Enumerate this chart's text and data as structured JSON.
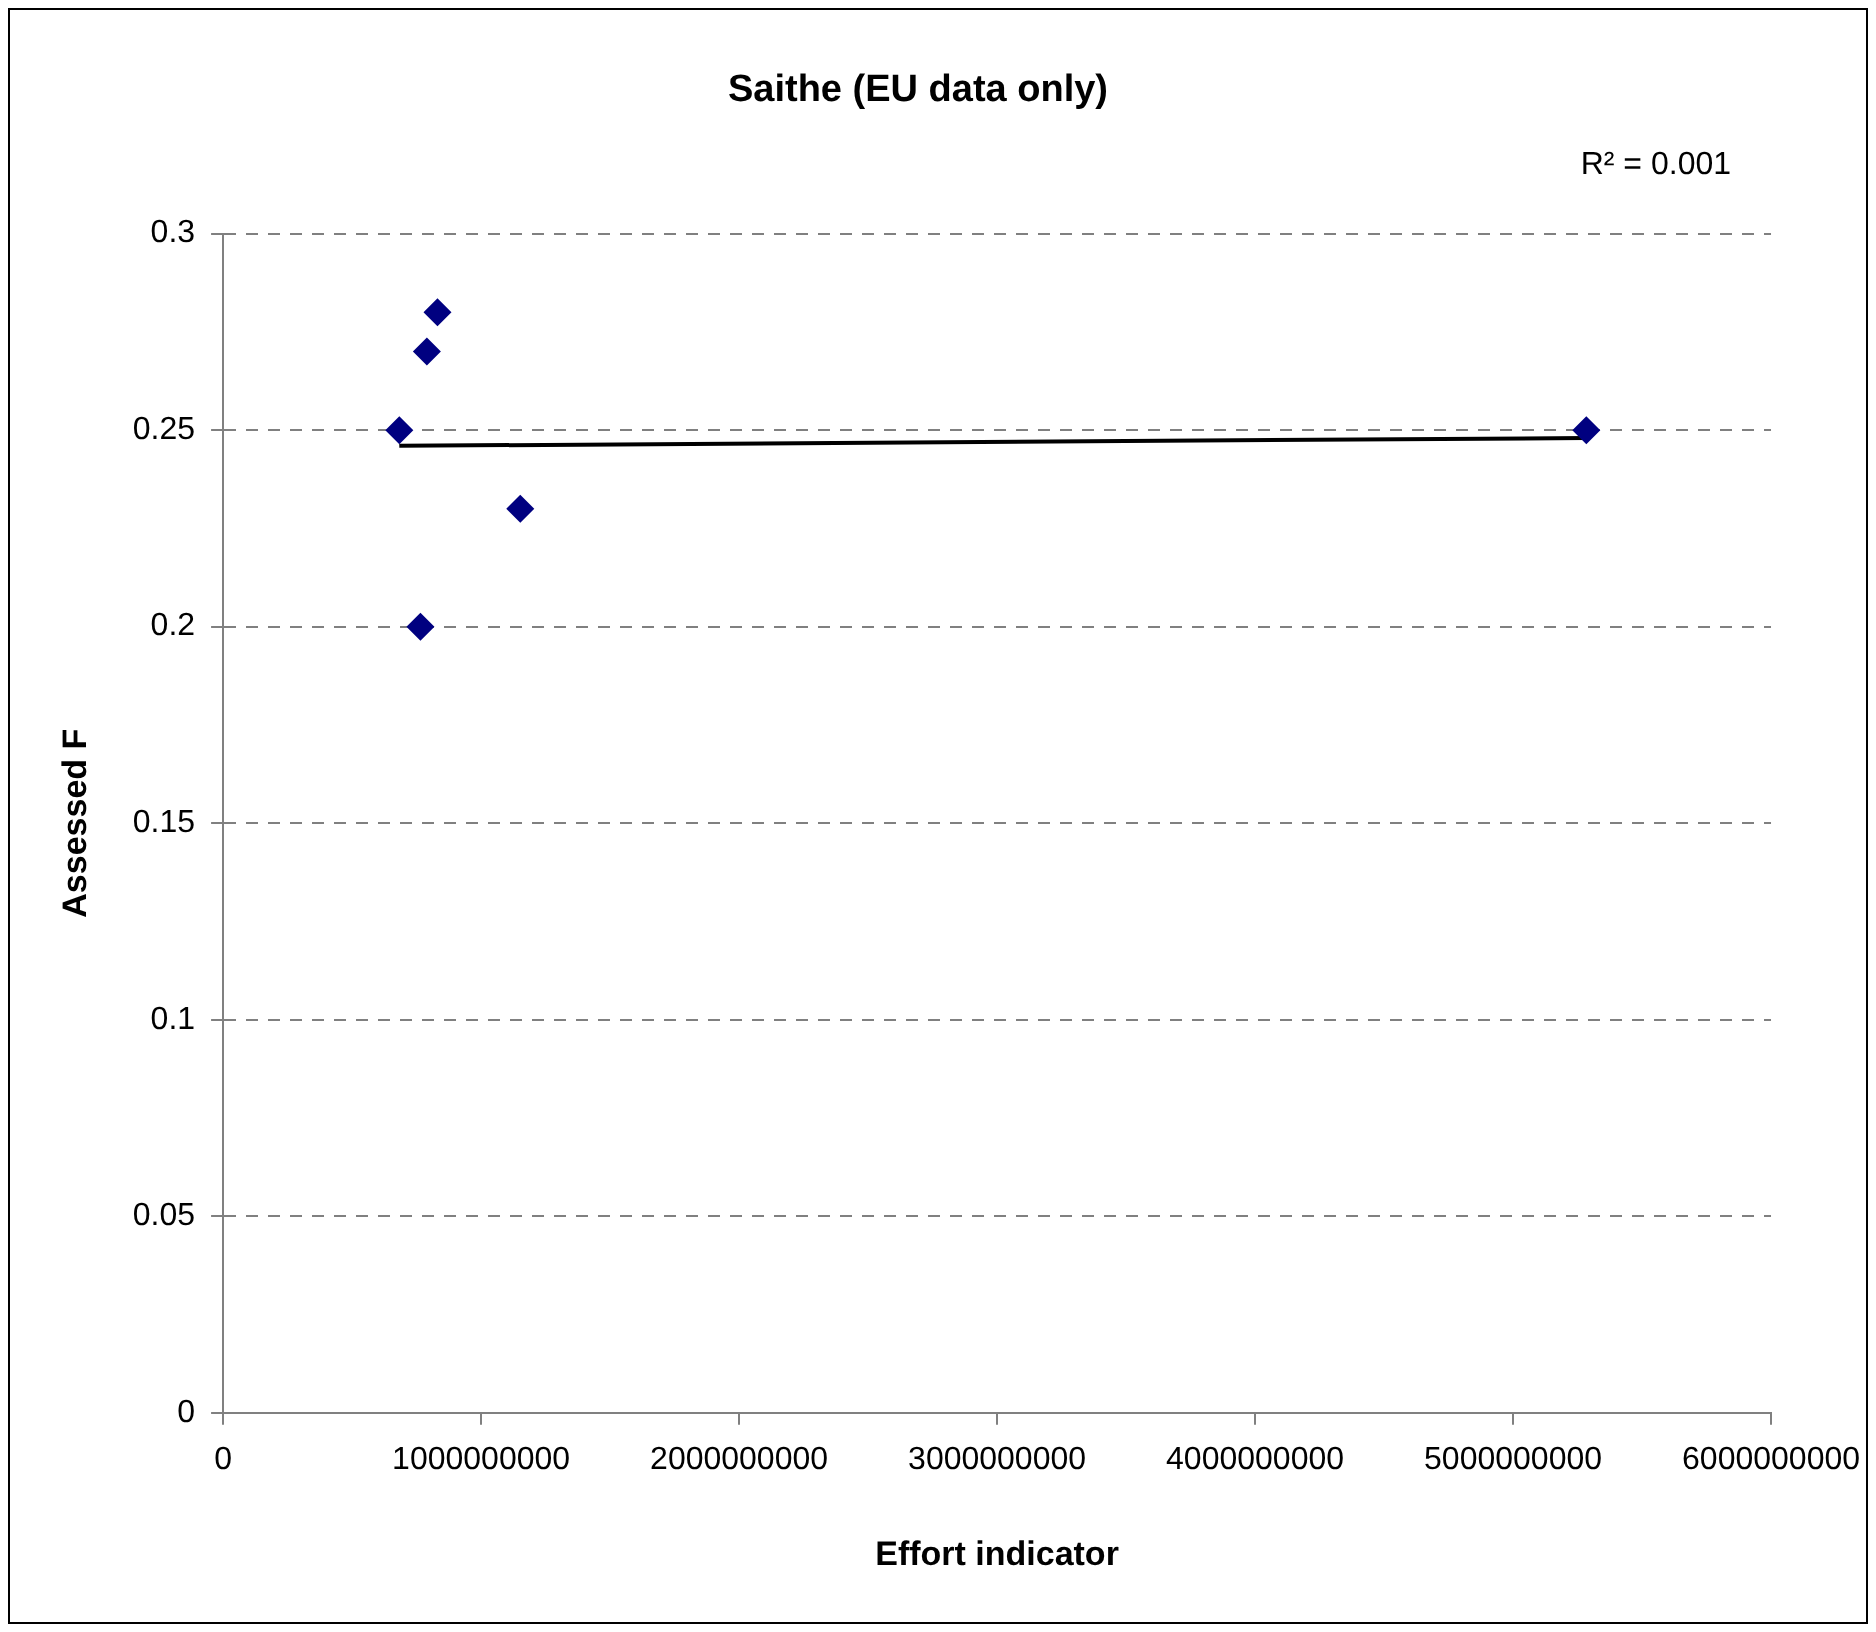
{
  "chart_data": {
    "type": "scatter",
    "title": "Saithe (EU data only)",
    "xlabel": "Effort indicator",
    "ylabel": "Assessed F",
    "annotations": [
      "R² = 0.001"
    ],
    "series": [
      {
        "type": "scatter",
        "color": "#000080",
        "marker": "diamond",
        "x": [
          683000000,
          765000000,
          790000000,
          831000000,
          1152000000,
          5284000000
        ],
        "values": [
          0.25,
          0.2,
          0.27,
          0.28,
          0.23,
          0.25
        ]
      },
      {
        "type": "line",
        "color": "#000000",
        "marker": "none",
        "x": [
          683000000,
          5284000000
        ],
        "values": [
          0.246,
          0.248
        ]
      }
    ],
    "xlim": [
      0,
      6000000000
    ],
    "xticks": [
      0,
      1000000000,
      2000000000,
      3000000000,
      4000000000,
      5000000000,
      6000000000
    ],
    "ylim": [
      0,
      0.3
    ],
    "yticks": [
      0,
      0.05,
      0.1,
      0.15,
      0.2,
      0.25,
      0.3
    ],
    "grid": "y",
    "legend": false
  }
}
